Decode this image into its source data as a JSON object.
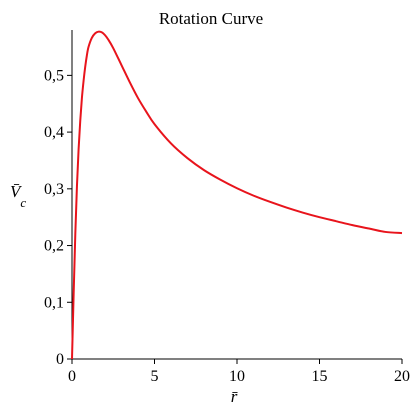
{
  "chart_data": {
    "type": "line",
    "title": "Rotation Curve",
    "xlabel": "r̄",
    "ylabel": "V̄",
    "ylabel_sub": "c",
    "xlim": [
      0,
      20
    ],
    "ylim": [
      0,
      0.58
    ],
    "xticks": [
      0,
      5,
      10,
      15,
      20
    ],
    "xtick_labels": [
      "0",
      "5",
      "10",
      "15",
      "20"
    ],
    "yticks": [
      0,
      0.1,
      0.2,
      0.3,
      0.4,
      0.5
    ],
    "ytick_labels": [
      "0",
      "0,1",
      "0,2",
      "0,3",
      "0,4",
      "0,5"
    ],
    "grid": false,
    "series": [
      {
        "color": "#e8141c",
        "x": [
          0,
          0.1,
          0.2,
          0.3,
          0.4,
          0.5,
          0.6,
          0.7,
          0.8,
          0.9,
          1.0,
          1.2,
          1.4,
          1.6,
          1.8,
          2.0,
          2.2,
          2.5,
          3.0,
          3.5,
          4.0,
          4.5,
          5.0,
          6.0,
          7.0,
          8.0,
          9.0,
          10.0,
          11.0,
          12.0,
          13.0,
          14.0,
          15.0,
          16.0,
          17.0,
          18.0,
          19.0,
          20.0
        ],
        "y": [
          0,
          0.115,
          0.22,
          0.305,
          0.37,
          0.42,
          0.46,
          0.49,
          0.515,
          0.535,
          0.55,
          0.566,
          0.574,
          0.577,
          0.576,
          0.571,
          0.563,
          0.548,
          0.518,
          0.488,
          0.46,
          0.436,
          0.414,
          0.38,
          0.354,
          0.333,
          0.316,
          0.301,
          0.288,
          0.277,
          0.267,
          0.258,
          0.25,
          0.243,
          0.236,
          0.23,
          0.224,
          0.222
        ]
      }
    ]
  }
}
